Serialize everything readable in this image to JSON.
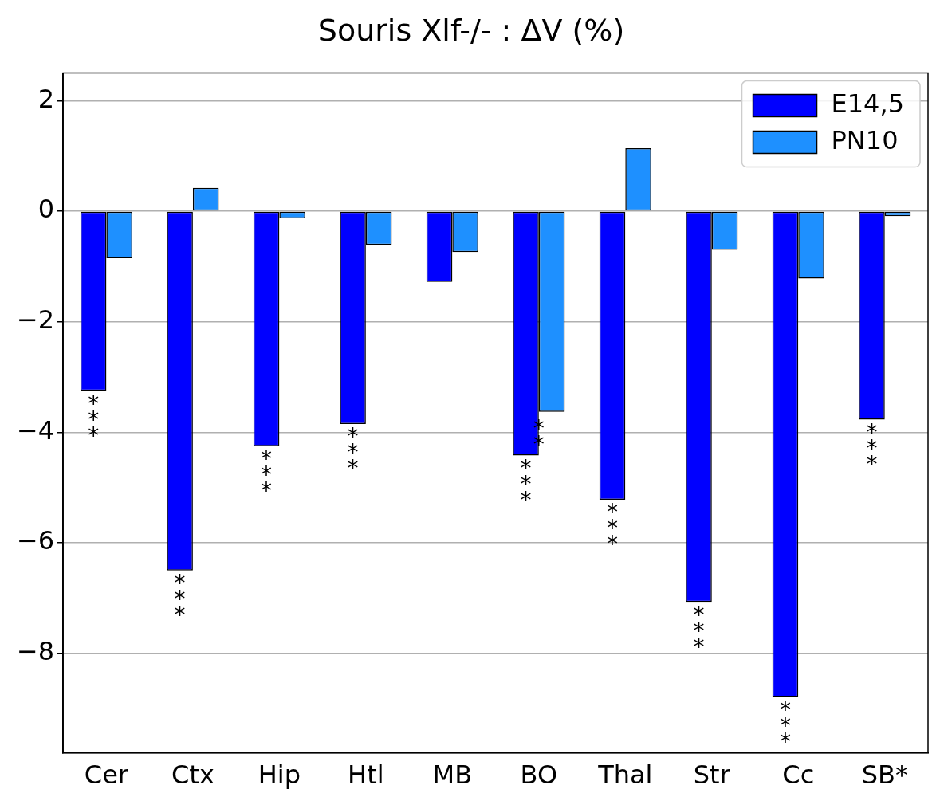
{
  "chart_data": {
    "type": "bar",
    "title": "Souris Xlf-/- : ΔV (%)",
    "categories": [
      "Cer",
      "Ctx",
      "Hip",
      "Htl",
      "MB",
      "BO",
      "Thal",
      "Str",
      "Cc",
      "SB*"
    ],
    "series": [
      {
        "name": "E14,5",
        "color": "#0000ff",
        "values": [
          -3.25,
          -6.5,
          -4.25,
          -3.85,
          -1.28,
          -4.42,
          -5.22,
          -7.07,
          -8.79,
          -3.77
        ]
      },
      {
        "name": "PN10",
        "color": "#1e90ff",
        "values": [
          -0.85,
          0.42,
          -0.13,
          -0.61,
          -0.74,
          -3.63,
          1.14,
          -0.7,
          -1.22,
          -0.09
        ]
      }
    ],
    "ylim": [
      -9.8,
      2.5
    ],
    "yticks": [
      {
        "value": -8,
        "label": "−8"
      },
      {
        "value": -6,
        "label": "−6"
      },
      {
        "value": -4,
        "label": "−4"
      },
      {
        "value": -2,
        "label": "−2"
      },
      0,
      2
    ],
    "grid": "y",
    "legend": "top right",
    "annotations": [
      {
        "text": "***",
        "x": "Cer",
        "y": -3.25
      },
      {
        "text": "***",
        "x": "Ctx",
        "y": -6.5
      },
      {
        "text": "***",
        "x": "Hip",
        "y": -4.25
      },
      {
        "text": "***",
        "x": "Htl",
        "y": -3.85
      },
      {
        "text": "***",
        "x": "BO",
        "y": -4.42
      },
      {
        "text": "**",
        "x": "BO",
        "y": -3.7
      },
      {
        "text": "***",
        "x": "Thal",
        "y": -5.22
      },
      {
        "text": "***",
        "x": "Str",
        "y": -7.07
      },
      {
        "text": "***",
        "x": "Cc",
        "y": -8.79
      },
      {
        "text": "***",
        "x": "SB*",
        "y": -3.77
      }
    ]
  }
}
